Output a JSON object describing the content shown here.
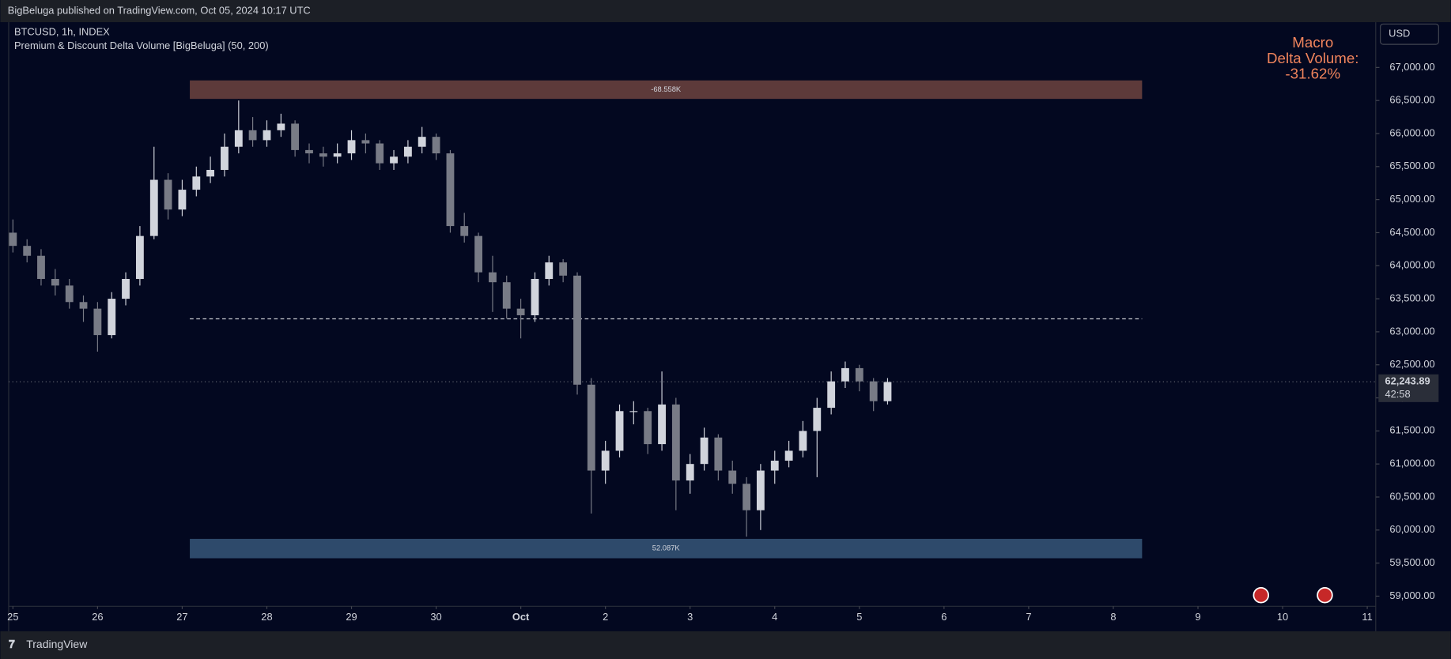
{
  "header": {
    "publisher": "BigBeluga published on TradingView.com, Oct 05, 2024 10:17 UTC",
    "footer_logo": "TradingView",
    "currency_button": "USD"
  },
  "chart_data": {
    "type": "candlestick",
    "symbol": "BTCUSD, 1h, INDEX",
    "indicator": "Premium & Discount Delta Volume [BigBeluga] (50, 200)",
    "annotation": [
      "Macro",
      "Delta Volume:",
      "-31.62%"
    ],
    "annotation_color": "#f0845c",
    "up_color": "#d1d4dc",
    "down_color": "#787b86",
    "xlim": [
      -0.05,
      16.1
    ],
    "ylim": [
      58860,
      67685
    ],
    "xticks": [
      {
        "value": 0,
        "label": "25"
      },
      {
        "value": 1,
        "label": "26"
      },
      {
        "value": 2,
        "label": "27"
      },
      {
        "value": 3,
        "label": "28"
      },
      {
        "value": 4,
        "label": "29"
      },
      {
        "value": 5,
        "label": "30"
      },
      {
        "value": 6,
        "label": "Oct"
      },
      {
        "value": 7,
        "label": "2"
      },
      {
        "value": 8,
        "label": "3"
      },
      {
        "value": 9,
        "label": "4"
      },
      {
        "value": 10,
        "label": "5"
      },
      {
        "value": 11,
        "label": "6"
      },
      {
        "value": 12,
        "label": "7"
      },
      {
        "value": 13,
        "label": "8"
      },
      {
        "value": 14,
        "label": "9"
      },
      {
        "value": 15,
        "label": "10"
      },
      {
        "value": 16,
        "label": "11"
      }
    ],
    "yticks": [
      {
        "value": 59000,
        "label": "59,000.00"
      },
      {
        "value": 59500,
        "label": "59,500.00"
      },
      {
        "value": 60000,
        "label": "60,000.00"
      },
      {
        "value": 60500,
        "label": "60,500.00"
      },
      {
        "value": 61000,
        "label": "61,000.00"
      },
      {
        "value": 61500,
        "label": "61,500.00"
      },
      {
        "value": 62000,
        "label": "62,000.00"
      },
      {
        "value": 62500,
        "label": "62,500.00"
      },
      {
        "value": 63000,
        "label": "63,000.00"
      },
      {
        "value": 63500,
        "label": "63,500.00"
      },
      {
        "value": 64000,
        "label": "64,000.00"
      },
      {
        "value": 64500,
        "label": "64,500.00"
      },
      {
        "value": 65000,
        "label": "65,000.00"
      },
      {
        "value": 65500,
        "label": "65,500.00"
      },
      {
        "value": 66000,
        "label": "66,000.00"
      },
      {
        "value": 66500,
        "label": "66,500.00"
      },
      {
        "value": 67000,
        "label": "67,000.00"
      }
    ],
    "x": [
      0,
      0.167,
      0.333,
      0.5,
      0.667,
      0.833,
      1,
      1.167,
      1.333,
      1.5,
      1.667,
      1.833,
      2,
      2.167,
      2.333,
      2.5,
      2.667,
      2.833,
      3,
      3.167,
      3.333,
      3.5,
      3.667,
      3.833,
      4,
      4.167,
      4.333,
      4.5,
      4.667,
      4.833,
      5,
      5.167,
      5.333,
      5.5,
      5.667,
      5.833,
      6,
      6.167,
      6.333,
      6.5,
      6.667,
      6.833,
      7,
      7.167,
      7.333,
      7.5,
      7.667,
      7.833,
      8,
      8.167,
      8.333,
      8.5,
      8.667,
      8.833,
      9,
      9.167,
      9.333,
      9.5,
      9.667,
      9.833,
      10,
      10.167,
      10.333
    ],
    "open": [
      64500,
      64300,
      64150,
      63800,
      63700,
      63450,
      63350,
      62950,
      63500,
      63800,
      64450,
      65300,
      64850,
      65150,
      65350,
      65450,
      65800,
      66050,
      65900,
      66050,
      66150,
      65750,
      65700,
      65650,
      65700,
      65900,
      65850,
      65550,
      65650,
      65800,
      65950,
      65700,
      64600,
      64450,
      63900,
      63750,
      63350,
      63250,
      63800,
      64050,
      63850,
      62200,
      60900,
      61200,
      61800,
      61800,
      61300,
      61900,
      60750,
      61000,
      61400,
      60900,
      60700,
      60300,
      60900,
      61050,
      61200,
      61500,
      61850,
      62250,
      62450,
      62250,
      61950
    ],
    "high": [
      64700,
      64400,
      64250,
      63950,
      63800,
      63550,
      63450,
      63600,
      63900,
      64600,
      65800,
      65400,
      65300,
      65500,
      65650,
      66000,
      66500,
      66250,
      66200,
      66300,
      66200,
      65850,
      65800,
      65850,
      66050,
      66000,
      65900,
      65750,
      65900,
      66100,
      66000,
      65750,
      64800,
      64500,
      64150,
      63850,
      63500,
      63900,
      64150,
      64100,
      63900,
      62300,
      61350,
      61900,
      61950,
      61850,
      62400,
      62000,
      61150,
      61550,
      61450,
      61050,
      60800,
      61000,
      61200,
      61350,
      61650,
      62000,
      62400,
      62550,
      62500,
      62300,
      62300
    ],
    "low": [
      64200,
      64050,
      63700,
      63550,
      63350,
      63150,
      62700,
      62900,
      63400,
      63700,
      64400,
      64700,
      64750,
      65050,
      65250,
      65350,
      65700,
      65800,
      65800,
      65950,
      65650,
      65550,
      65500,
      65550,
      65600,
      65700,
      65450,
      65450,
      65550,
      65700,
      65600,
      64500,
      64350,
      63750,
      63300,
      63200,
      62900,
      63150,
      63700,
      63750,
      62050,
      60250,
      60700,
      61100,
      61600,
      61150,
      61200,
      60300,
      60550,
      60900,
      60750,
      60550,
      59900,
      60000,
      60700,
      60950,
      61100,
      60800,
      61750,
      62150,
      62100,
      61800,
      61900
    ],
    "close": [
      64300,
      64150,
      63800,
      63700,
      63450,
      63350,
      62950,
      63500,
      63800,
      64450,
      65300,
      64850,
      65150,
      65350,
      65450,
      65800,
      66050,
      65900,
      66050,
      66150,
      65750,
      65700,
      65650,
      65700,
      65900,
      65850,
      65550,
      65650,
      65800,
      65950,
      65700,
      64600,
      64450,
      63900,
      63750,
      63350,
      63250,
      63800,
      64050,
      63850,
      62200,
      60900,
      61200,
      61800,
      61800,
      61300,
      61900,
      60750,
      61000,
      61400,
      60900,
      60700,
      60300,
      60900,
      61050,
      61200,
      61500,
      61850,
      62250,
      62450,
      62250,
      61950,
      62240
    ],
    "zones": [
      {
        "label": "-68.558K",
        "x": [
          2.09,
          13.34
        ],
        "y": [
          66524,
          66804
        ],
        "color": "#5d3a3a"
      },
      {
        "label": "52.087K",
        "x": [
          2.09,
          13.34
        ],
        "y": [
          59573,
          59867
        ],
        "color": "#2e4a6b"
      }
    ],
    "midline": {
      "x": [
        2.09,
        13.34
      ],
      "y": 63196
    },
    "last_price": {
      "value": 62243.89,
      "label": "62,243.89",
      "countdown": "42:58"
    }
  }
}
